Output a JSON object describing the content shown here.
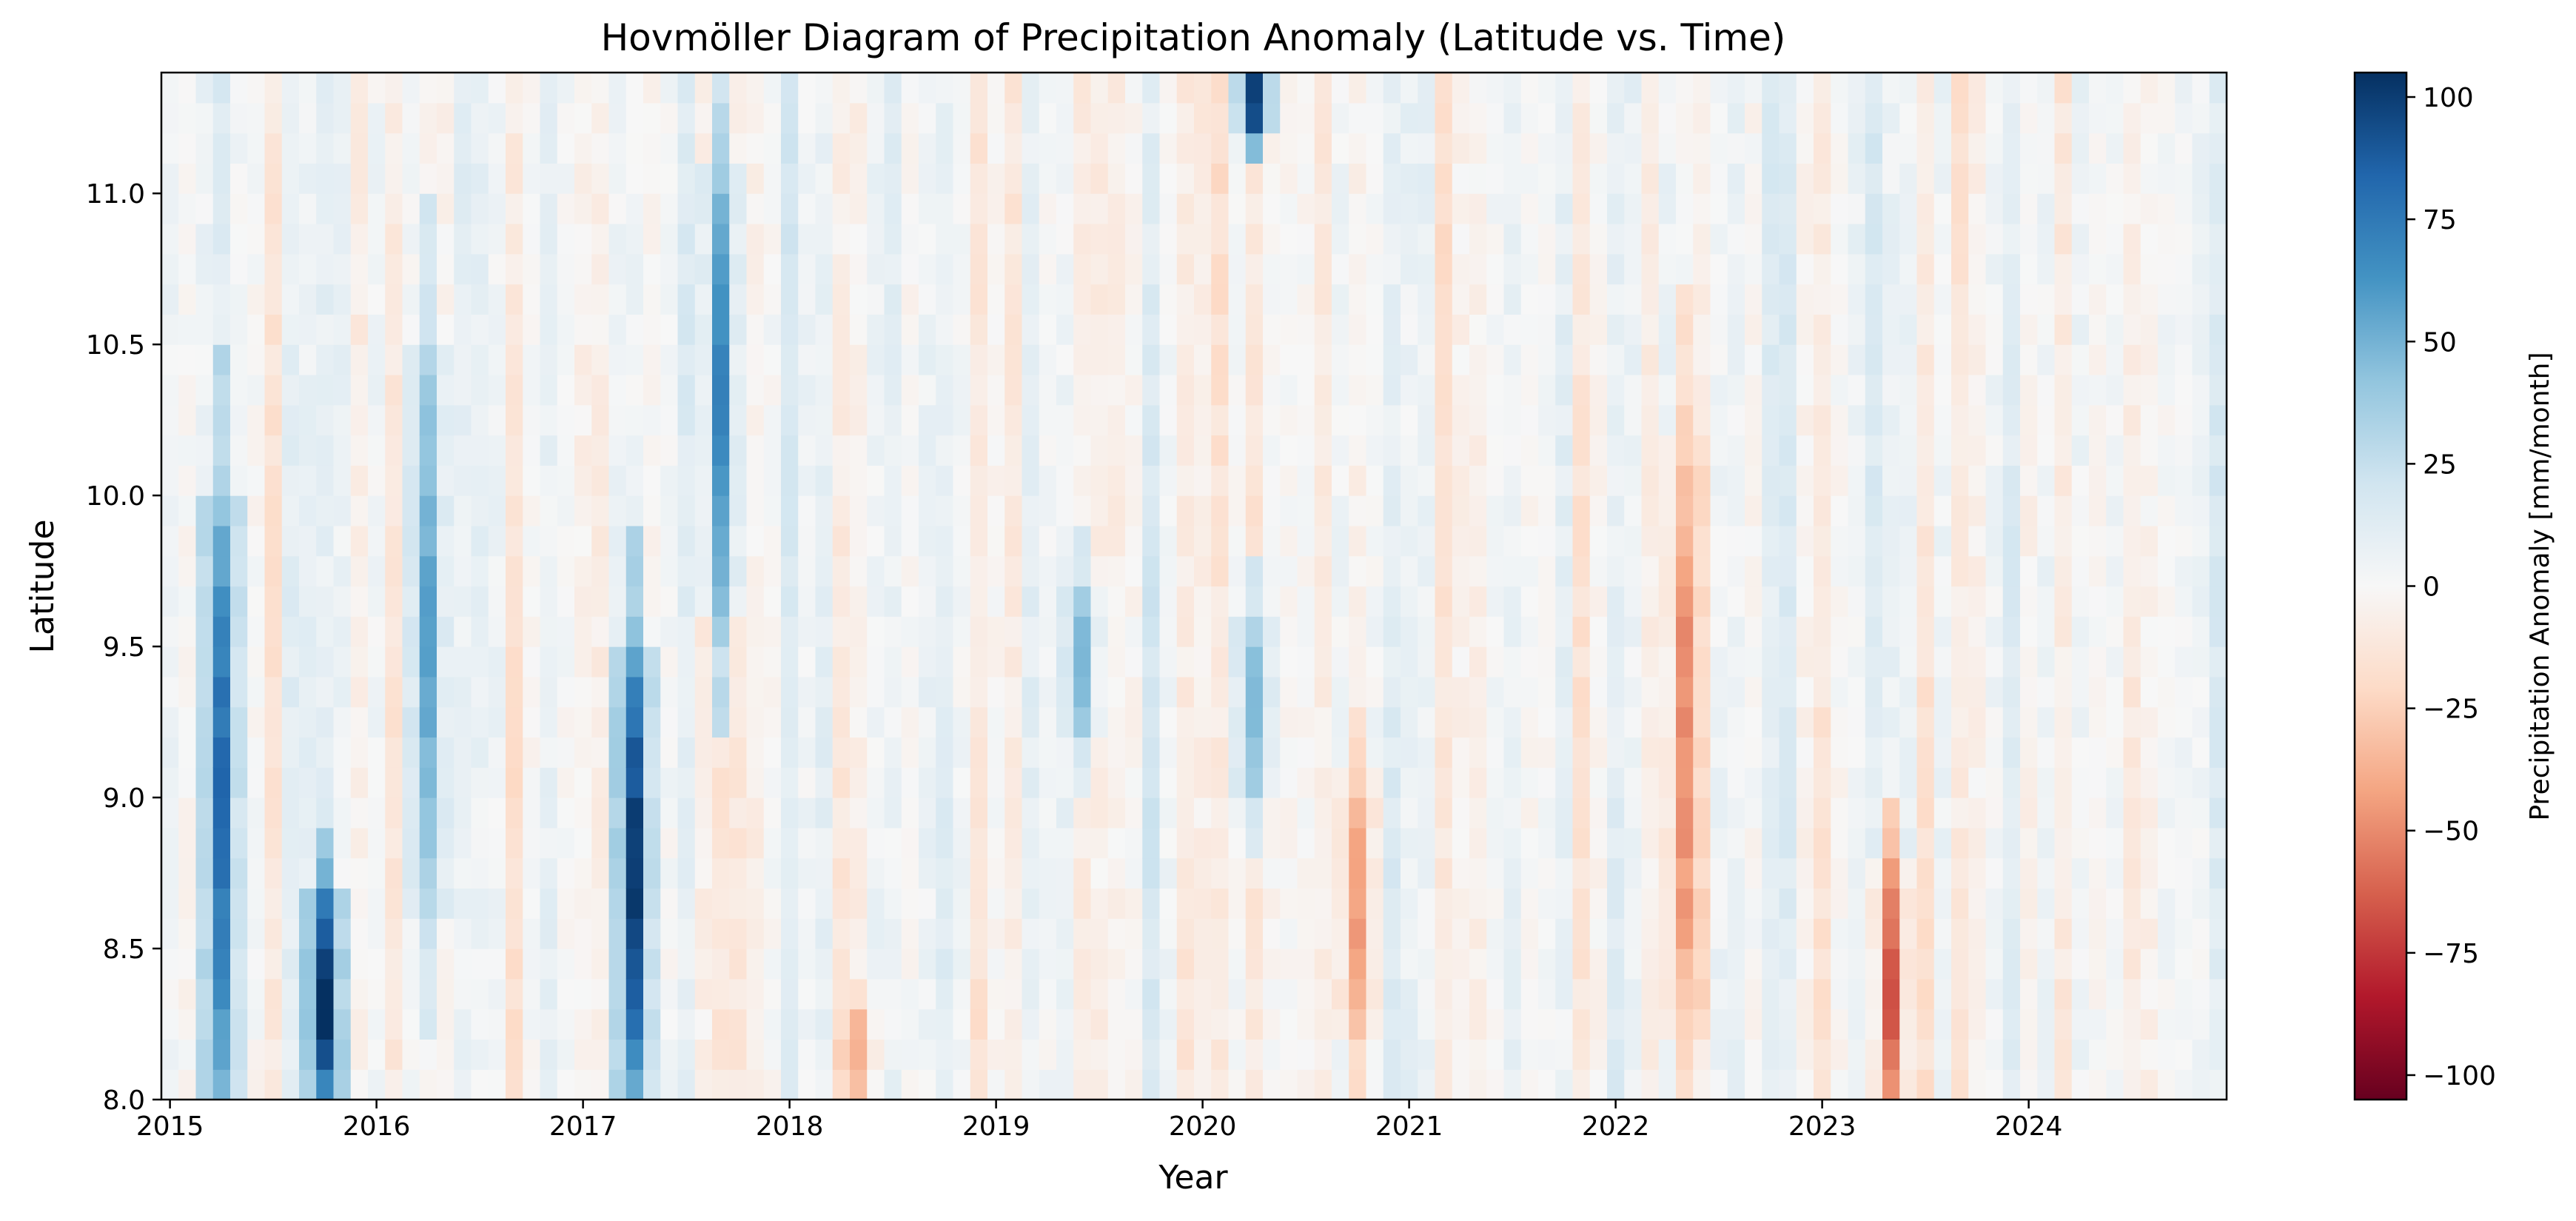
{
  "chart_data": {
    "type": "heatmap",
    "title": "Hovmöller Diagram of Precipitation Anomaly (Latitude vs. Time)",
    "xlabel": "Year",
    "ylabel": "Latitude",
    "colorbar_label": "Precipitation Anomaly [mm/month]",
    "colormap": "RdBu",
    "colormap_stops": [
      "#67001f",
      "#b2182b",
      "#d6604d",
      "#f4a582",
      "#fddbc7",
      "#f7f7f7",
      "#d1e5f0",
      "#92c5de",
      "#4393c3",
      "#2166ac",
      "#053061"
    ],
    "vmin": -105,
    "vmax": 105,
    "x_range": [
      "2015-01",
      "2024-12"
    ],
    "y_range": [
      8.0,
      11.4
    ],
    "time_resolution": "monthly",
    "latitude_resolution": 0.1,
    "x_ticks": [
      "2015",
      "2016",
      "2017",
      "2018",
      "2019",
      "2020",
      "2021",
      "2022",
      "2023",
      "2024"
    ],
    "y_ticks": [
      "8.0",
      "8.5",
      "9.0",
      "9.5",
      "10.0",
      "10.5",
      "11.0"
    ],
    "colorbar_ticks": [
      "100",
      "75",
      "50",
      "25",
      "0",
      "−25",
      "−50",
      "−75",
      "−100"
    ],
    "grid": false,
    "notable_events": [
      {
        "date": "2015-04",
        "lat_range": [
          8.0,
          10.0
        ],
        "anomaly": 80
      },
      {
        "date": "2015-10",
        "lat_range": [
          8.0,
          8.7
        ],
        "anomaly": 105
      },
      {
        "date": "2016-04",
        "lat_range": [
          8.6,
          10.5
        ],
        "anomaly": 55
      },
      {
        "date": "2017-04",
        "lat_range": [
          8.0,
          9.5
        ],
        "anomaly": 100
      },
      {
        "date": "2017-09",
        "lat_range": [
          9.6,
          11.1
        ],
        "anomaly": 70
      },
      {
        "date": "2018-05",
        "lat_range": [
          8.0,
          8.3
        ],
        "anomaly": -40
      },
      {
        "date": "2019-06",
        "lat_range": [
          9.2,
          9.7
        ],
        "anomaly": 45
      },
      {
        "date": "2020-04",
        "lat_range": [
          11.2,
          11.4
        ],
        "anomaly": 100
      },
      {
        "date": "2020-04",
        "lat_range": [
          9.0,
          9.6
        ],
        "anomaly": 45
      },
      {
        "date": "2020-10",
        "lat_range": [
          8.2,
          9.1
        ],
        "anomaly": -45
      },
      {
        "date": "2022-05",
        "lat_range": [
          8.2,
          10.2
        ],
        "anomaly": -50
      },
      {
        "date": "2023-05",
        "lat_range": [
          8.0,
          8.8
        ],
        "anomaly": -65
      }
    ]
  }
}
